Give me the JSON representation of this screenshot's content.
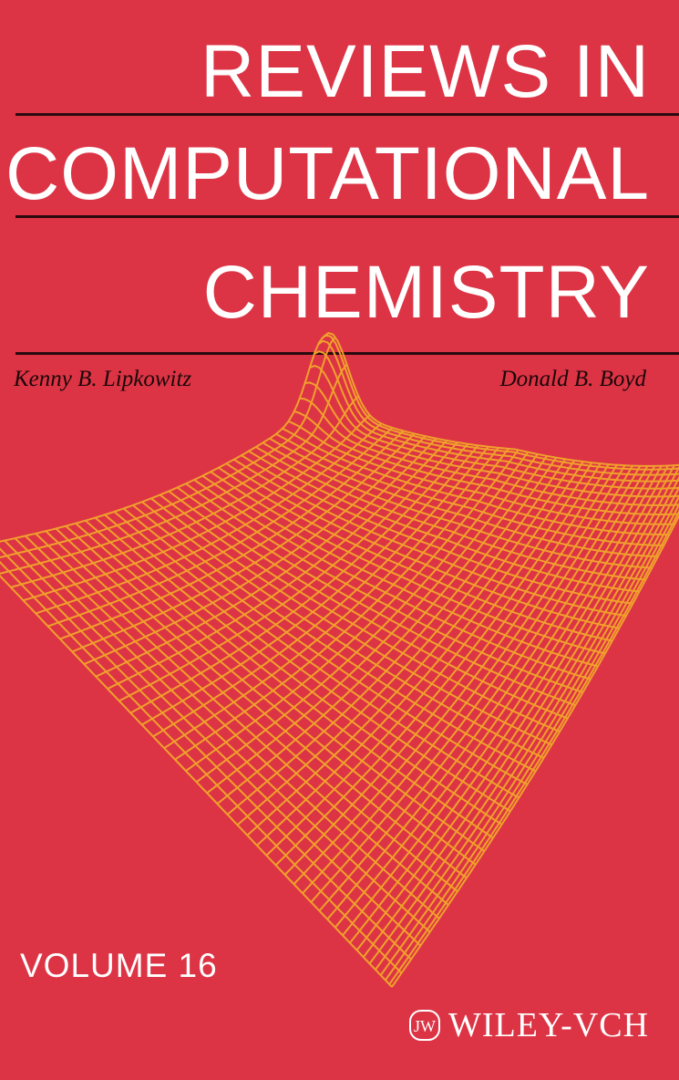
{
  "cover": {
    "title_lines": [
      "REVIEWS IN",
      "COMPUTATIONAL",
      "CHEMISTRY"
    ],
    "authors": [
      "Kenny B. Lipkowitz",
      "Donald B. Boyd"
    ],
    "volume": "VOLUME 16",
    "publisher": "WILEY-VCH",
    "colors": {
      "background": "#dc3445",
      "mesh": "#f0a02c",
      "text": "#ffffff",
      "rule": "#2a0a0e"
    },
    "illustration": "wireframe-potential-energy-surface"
  }
}
